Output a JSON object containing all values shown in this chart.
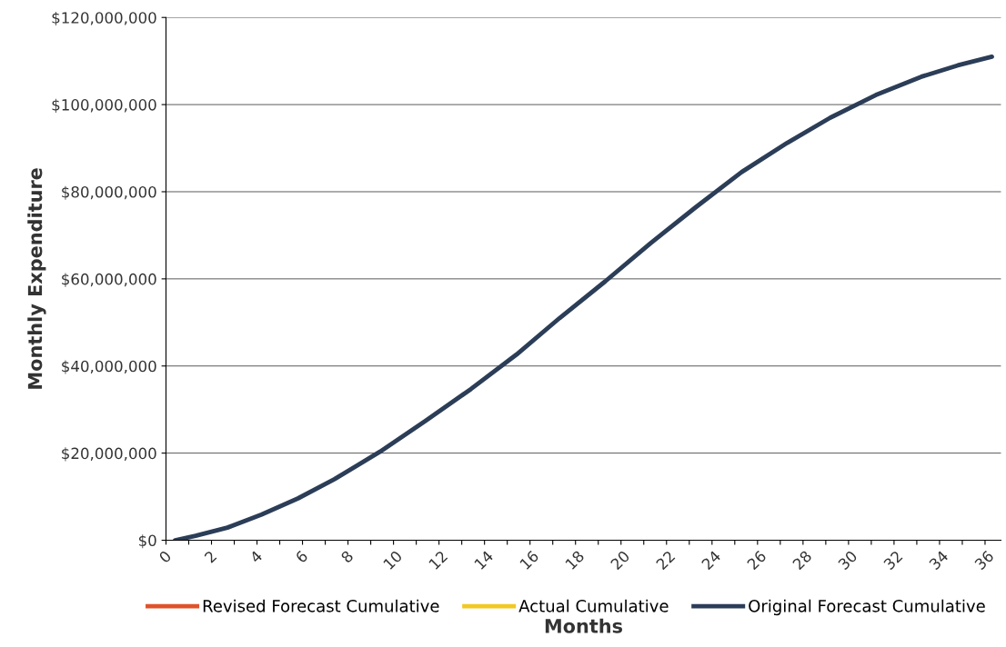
{
  "chart_data": {
    "type": "line",
    "xlabel": "Months",
    "ylabel": "Monthly Expenditure",
    "x": [
      0.4,
      1.3,
      2.7,
      4.2,
      5.8,
      7.4,
      9.4,
      11.4,
      13.4,
      15.4,
      17.3,
      19.3,
      21.3,
      23.3,
      25.3,
      27.3,
      29.2,
      31.2,
      33.2,
      34.8,
      36.3
    ],
    "series": [
      {
        "name": "Revised Forecast Cumulative",
        "color": "#e0522a",
        "values": [
          null,
          null,
          null,
          null,
          null,
          null,
          null,
          null,
          null,
          null,
          null,
          null,
          null,
          null,
          null,
          null,
          null,
          null,
          null,
          null,
          null
        ]
      },
      {
        "name": "Actual Cumulative",
        "color": "#f2c822",
        "values": [
          null,
          null,
          null,
          null,
          null,
          null,
          null,
          null,
          null,
          null,
          null,
          null,
          null,
          null,
          null,
          null,
          null,
          null,
          null,
          null,
          null
        ]
      },
      {
        "name": "Original Forecast Cumulative",
        "color": "#2b3d57",
        "values": [
          0,
          1000000,
          2900000,
          5900000,
          9600000,
          14000000,
          20300000,
          27400000,
          34700000,
          42600000,
          51000000,
          59400000,
          68200000,
          76500000,
          84500000,
          91200000,
          97000000,
          102200000,
          106400000,
          109000000,
          111000000
        ]
      }
    ],
    "xlim": [
      0,
      36.7
    ],
    "xticks": [
      0,
      {
        "value": 1,
        "label": null
      },
      2,
      {
        "value": 3,
        "label": null
      },
      4,
      {
        "value": 5,
        "label": null
      },
      6,
      {
        "value": 7,
        "label": null
      },
      8,
      {
        "value": 9,
        "label": null
      },
      10,
      {
        "value": 11,
        "label": null
      },
      12,
      {
        "value": 13,
        "label": null
      },
      14,
      {
        "value": 15,
        "label": null
      },
      16,
      {
        "value": 17,
        "label": null
      },
      18,
      {
        "value": 19,
        "label": null
      },
      20,
      {
        "value": 21,
        "label": null
      },
      22,
      {
        "value": 23,
        "label": null
      },
      24,
      {
        "value": 25,
        "label": null
      },
      26,
      {
        "value": 27,
        "label": null
      },
      28,
      {
        "value": 29,
        "label": null
      },
      30,
      {
        "value": 31,
        "label": null
      },
      32,
      {
        "value": 33,
        "label": null
      },
      34,
      {
        "value": 35,
        "label": null
      },
      36
    ],
    "ylim": [
      0,
      120000000
    ],
    "yticks": [
      {
        "value": 0,
        "label": "$0"
      },
      {
        "value": 20000000,
        "label": "$20,000,000"
      },
      {
        "value": 40000000,
        "label": "$40,000,000"
      },
      {
        "value": 60000000,
        "label": "$60,000,000"
      },
      {
        "value": 80000000,
        "label": "$80,000,000"
      },
      {
        "value": 100000000,
        "label": "$100,000,000"
      },
      {
        "value": 120000000,
        "label": "$120,000,000"
      }
    ],
    "grid": "y",
    "legend": "bottom",
    "marker": "none",
    "line_style": "solid"
  }
}
